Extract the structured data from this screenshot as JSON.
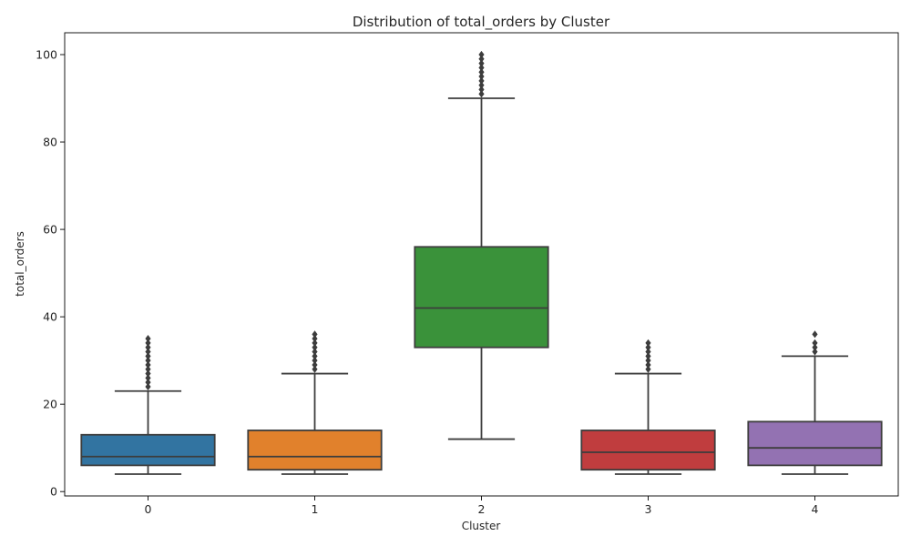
{
  "chart_data": {
    "type": "box",
    "title": "Distribution of total_orders by Cluster",
    "xlabel": "Cluster",
    "ylabel": "total_orders",
    "categories": [
      "0",
      "1",
      "2",
      "3",
      "4"
    ],
    "ylim": [
      -1,
      105
    ],
    "yticks": [
      0,
      20,
      40,
      60,
      80,
      100
    ],
    "grid": false,
    "legend": "none",
    "line_color": "#3d3d3d",
    "boxes": [
      {
        "category": "0",
        "color": "#3274a1",
        "whisker_low": 4,
        "q1": 6,
        "median": 8,
        "q3": 13,
        "whisker_high": 23,
        "outliers": [
          24,
          25,
          26,
          27,
          28,
          29,
          30,
          31,
          32,
          33,
          34,
          35
        ]
      },
      {
        "category": "1",
        "color": "#e1812c",
        "whisker_low": 4,
        "q1": 5,
        "median": 8,
        "q3": 14,
        "whisker_high": 27,
        "outliers": [
          28,
          29,
          30,
          31,
          32,
          33,
          34,
          35,
          36
        ]
      },
      {
        "category": "2",
        "color": "#3a923a",
        "whisker_low": 12,
        "q1": 33,
        "median": 42,
        "q3": 56,
        "whisker_high": 90,
        "outliers": [
          91,
          92,
          93,
          94,
          95,
          96,
          97,
          98,
          99,
          100
        ]
      },
      {
        "category": "3",
        "color": "#c03d3e",
        "whisker_low": 4,
        "q1": 5,
        "median": 9,
        "q3": 14,
        "whisker_high": 27,
        "outliers": [
          28,
          29,
          30,
          31,
          32,
          33,
          34
        ]
      },
      {
        "category": "4",
        "color": "#9372b2",
        "whisker_low": 4,
        "q1": 6,
        "median": 10,
        "q3": 16,
        "whisker_high": 31,
        "outliers": [
          32,
          33,
          34,
          36
        ]
      }
    ]
  }
}
